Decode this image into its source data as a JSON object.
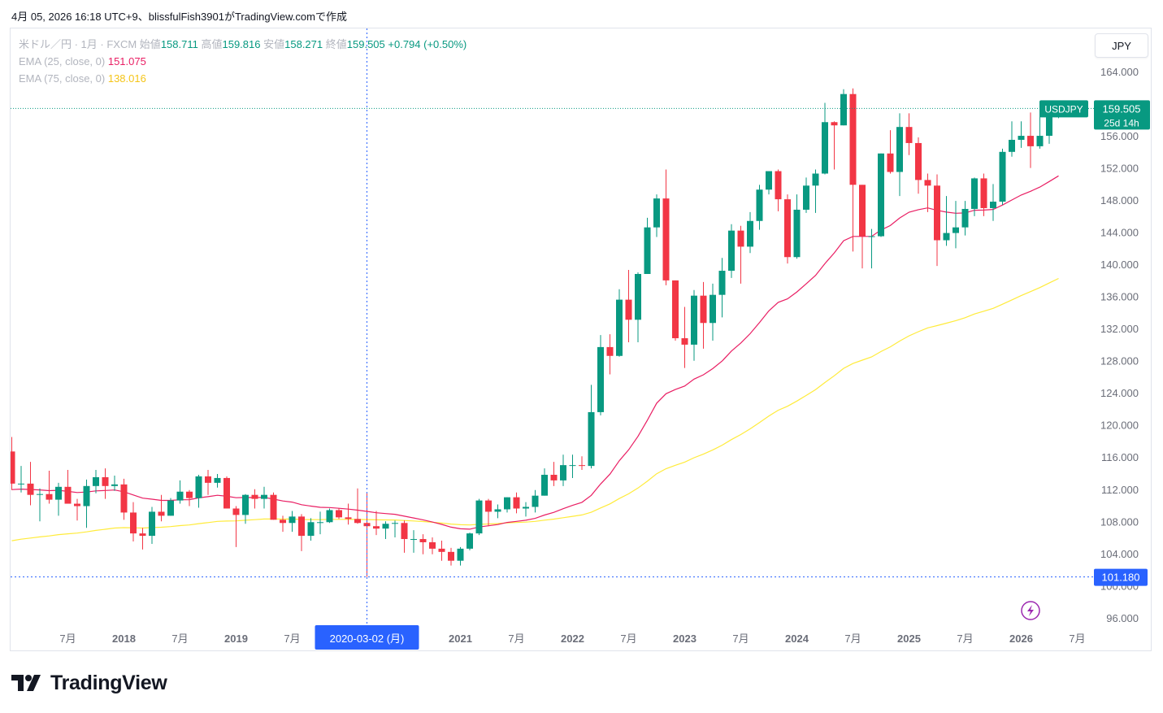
{
  "caption": "4月 05, 2026 16:18 UTC+9、blissfulFish3901がTradingView.comで作成",
  "legend": {
    "symbol_desc": "米ドル／円 · 1月 · FXCM",
    "open_label": "始値",
    "open_value": "158.711",
    "high_label": "高値",
    "high_value": "159.816",
    "low_label": "安値",
    "low_value": "158.271",
    "close_label": "終値",
    "close_value": "159.505",
    "change": "+0.794 (+0.50%)",
    "ema25_label": "EMA (25, close, 0)",
    "ema25_value": "151.075",
    "ema75_label": "EMA (75, close, 0)",
    "ema75_value": "138.016"
  },
  "currency_button": "JPY",
  "price_tag": {
    "symbol": "USDJPY",
    "price": "159.505",
    "countdown": "25d 14h"
  },
  "crosshair_price": "101.180",
  "crosshair_time": "2020-03-02 (月)",
  "logo_text": "TradingView",
  "colors": {
    "up": "#089981",
    "down": "#f23645",
    "ema25": "#e91e63",
    "ema75": "#ffeb3b",
    "crosshair": "#2962ff",
    "text": "#131722",
    "axis_text": "#6a6d78"
  },
  "chart_data": {
    "type": "candlestick",
    "symbol": "USDJPY",
    "interval": "1M",
    "ylim": [
      94,
      166
    ],
    "y_ticks": [
      "164.000",
      "160.000",
      "156.000",
      "152.000",
      "148.000",
      "144.000",
      "140.000",
      "136.000",
      "132.000",
      "128.000",
      "124.000",
      "120.000",
      "116.000",
      "112.000",
      "108.000",
      "104.000",
      "100.000",
      "96.000"
    ],
    "x_ticks": [
      {
        "label": "7月",
        "date": "2017-07"
      },
      {
        "label": "2018",
        "date": "2018-01"
      },
      {
        "label": "7月",
        "date": "2018-07"
      },
      {
        "label": "2019",
        "date": "2019-01"
      },
      {
        "label": "7月",
        "date": "2019-07"
      },
      {
        "label": "2021",
        "date": "2021-01"
      },
      {
        "label": "7月",
        "date": "2021-07"
      },
      {
        "label": "2022",
        "date": "2022-01"
      },
      {
        "label": "7月",
        "date": "2022-07"
      },
      {
        "label": "2023",
        "date": "2023-01"
      },
      {
        "label": "7月",
        "date": "2023-07"
      },
      {
        "label": "2024",
        "date": "2024-01"
      },
      {
        "label": "7月",
        "date": "2024-07"
      },
      {
        "label": "2025",
        "date": "2025-01"
      },
      {
        "label": "7月",
        "date": "2025-07"
      },
      {
        "label": "2026",
        "date": "2026-01"
      },
      {
        "label": "7月",
        "date": "2026-07"
      }
    ],
    "start": "2017-01",
    "ohlc": [
      [
        116.8,
        118.6,
        112.0,
        112.8
      ],
      [
        112.8,
        115.0,
        111.7,
        112.8
      ],
      [
        112.8,
        115.5,
        110.1,
        111.4
      ],
      [
        111.4,
        112.2,
        108.1,
        111.5
      ],
      [
        111.5,
        114.4,
        110.3,
        110.8
      ],
      [
        110.8,
        112.9,
        108.8,
        112.4
      ],
      [
        112.4,
        114.5,
        110.6,
        110.3
      ],
      [
        110.3,
        110.9,
        108.2,
        110.0
      ],
      [
        110.0,
        113.3,
        107.3,
        112.5
      ],
      [
        112.5,
        114.5,
        111.6,
        113.6
      ],
      [
        113.6,
        114.7,
        110.9,
        112.5
      ],
      [
        112.5,
        113.8,
        111.9,
        112.7
      ],
      [
        112.7,
        113.4,
        108.3,
        109.2
      ],
      [
        109.2,
        110.5,
        105.6,
        106.6
      ],
      [
        106.6,
        107.3,
        104.6,
        106.3
      ],
      [
        106.3,
        109.9,
        105.3,
        109.3
      ],
      [
        109.3,
        111.4,
        108.1,
        108.8
      ],
      [
        108.8,
        111.0,
        108.8,
        110.7
      ],
      [
        110.7,
        113.2,
        110.3,
        111.8
      ],
      [
        111.8,
        112.0,
        110.0,
        111.0
      ],
      [
        111.0,
        113.9,
        109.8,
        113.7
      ],
      [
        113.7,
        114.5,
        111.4,
        112.9
      ],
      [
        112.9,
        114.0,
        112.3,
        113.5
      ],
      [
        113.5,
        113.7,
        110.0,
        109.7
      ],
      [
        109.7,
        110.0,
        104.9,
        108.9
      ],
      [
        108.9,
        111.5,
        107.8,
        111.4
      ],
      [
        111.4,
        112.1,
        109.7,
        110.9
      ],
      [
        110.9,
        112.4,
        109.7,
        111.4
      ],
      [
        111.4,
        111.7,
        108.3,
        108.3
      ],
      [
        108.3,
        108.8,
        106.8,
        107.9
      ],
      [
        107.9,
        109.4,
        106.8,
        108.7
      ],
      [
        108.7,
        109.0,
        104.4,
        106.3
      ],
      [
        106.3,
        108.5,
        105.7,
        108.0
      ],
      [
        108.0,
        109.3,
        106.5,
        108.0
      ],
      [
        108.0,
        109.7,
        107.9,
        109.5
      ],
      [
        109.5,
        109.7,
        108.4,
        108.6
      ],
      [
        108.6,
        110.3,
        107.7,
        108.4
      ],
      [
        108.4,
        112.2,
        107.8,
        107.9
      ],
      [
        107.9,
        111.7,
        101.2,
        107.5
      ],
      [
        107.5,
        109.4,
        106.4,
        107.2
      ],
      [
        107.2,
        108.1,
        105.9,
        107.8
      ],
      [
        107.8,
        108.2,
        106.1,
        107.9
      ],
      [
        107.9,
        108.2,
        104.2,
        105.9
      ],
      [
        105.9,
        107.0,
        104.2,
        105.9
      ],
      [
        105.9,
        106.5,
        104.0,
        105.5
      ],
      [
        105.5,
        106.1,
        104.0,
        104.7
      ],
      [
        104.7,
        105.7,
        103.2,
        104.3
      ],
      [
        104.3,
        104.8,
        102.6,
        103.2
      ],
      [
        103.2,
        104.9,
        102.6,
        104.7
      ],
      [
        104.7,
        106.7,
        104.5,
        106.6
      ],
      [
        106.6,
        110.9,
        106.4,
        110.7
      ],
      [
        110.7,
        110.9,
        107.5,
        109.3
      ],
      [
        109.3,
        110.2,
        108.5,
        109.6
      ],
      [
        109.6,
        111.1,
        109.2,
        111.1
      ],
      [
        111.1,
        111.7,
        109.1,
        109.7
      ],
      [
        109.7,
        110.5,
        108.7,
        109.9
      ],
      [
        109.9,
        112.0,
        109.2,
        111.3
      ],
      [
        111.3,
        114.7,
        111.3,
        113.9
      ],
      [
        113.9,
        115.5,
        112.5,
        113.2
      ],
      [
        113.2,
        116.4,
        112.5,
        115.1
      ],
      [
        115.1,
        116.4,
        113.5,
        115.1
      ],
      [
        115.1,
        116.2,
        114.5,
        115.0
      ],
      [
        115.0,
        125.1,
        114.7,
        121.7
      ],
      [
        121.7,
        131.3,
        121.3,
        129.8
      ],
      [
        129.8,
        131.4,
        126.4,
        128.7
      ],
      [
        128.7,
        137.0,
        128.6,
        135.7
      ],
      [
        135.7,
        139.4,
        130.4,
        133.2
      ],
      [
        133.2,
        139.1,
        130.4,
        138.9
      ],
      [
        138.9,
        145.9,
        138.9,
        144.7
      ],
      [
        144.7,
        148.8,
        143.5,
        148.3
      ],
      [
        148.3,
        151.9,
        137.5,
        138.1
      ],
      [
        138.1,
        138.1,
        130.6,
        130.9
      ],
      [
        130.9,
        134.8,
        127.2,
        130.1
      ],
      [
        130.1,
        136.9,
        128.1,
        136.2
      ],
      [
        136.2,
        137.9,
        129.6,
        132.8
      ],
      [
        132.8,
        137.7,
        130.6,
        136.3
      ],
      [
        136.3,
        140.9,
        133.5,
        139.3
      ],
      [
        139.3,
        145.1,
        138.4,
        144.3
      ],
      [
        144.3,
        144.9,
        137.7,
        142.3
      ],
      [
        142.3,
        146.6,
        141.5,
        145.5
      ],
      [
        145.5,
        150.0,
        144.4,
        149.4
      ],
      [
        149.4,
        151.7,
        148.8,
        151.7
      ],
      [
        151.7,
        151.9,
        146.7,
        148.2
      ],
      [
        148.2,
        148.8,
        140.2,
        141.0
      ],
      [
        141.0,
        148.8,
        140.8,
        146.9
      ],
      [
        146.9,
        150.9,
        146.5,
        149.9
      ],
      [
        149.9,
        151.9,
        146.5,
        151.4
      ],
      [
        151.4,
        160.2,
        151.3,
        157.8
      ],
      [
        157.8,
        157.9,
        151.9,
        157.4
      ],
      [
        157.4,
        161.9,
        157.4,
        161.3
      ],
      [
        161.3,
        162.0,
        141.7,
        150.0
      ],
      [
        150.0,
        150.0,
        139.6,
        143.6
      ],
      [
        143.6,
        144.5,
        139.6,
        143.6
      ],
      [
        143.6,
        153.9,
        143.5,
        153.9
      ],
      [
        153.9,
        156.8,
        151.4,
        151.6
      ],
      [
        151.6,
        158.9,
        148.6,
        157.2
      ],
      [
        157.2,
        158.9,
        153.7,
        155.2
      ],
      [
        155.2,
        155.9,
        148.9,
        150.6
      ],
      [
        150.6,
        151.4,
        146.6,
        149.9
      ],
      [
        149.9,
        151.3,
        139.9,
        143.1
      ],
      [
        143.1,
        148.6,
        142.4,
        144.0
      ],
      [
        144.0,
        148.0,
        142.1,
        144.7
      ],
      [
        144.7,
        148.0,
        143.7,
        147.0
      ],
      [
        147.0,
        150.9,
        146.1,
        150.8
      ],
      [
        150.8,
        151.4,
        146.1,
        147.1
      ],
      [
        147.1,
        150.1,
        145.5,
        147.9
      ],
      [
        147.9,
        154.5,
        147.5,
        154.1
      ],
      [
        154.1,
        157.9,
        153.5,
        155.6
      ],
      [
        155.6,
        157.9,
        154.6,
        156.1
      ],
      [
        156.1,
        159.0,
        152.1,
        154.8
      ],
      [
        154.8,
        160.0,
        154.5,
        156.1
      ],
      [
        156.1,
        159.8,
        155.1,
        158.7
      ],
      [
        158.7,
        159.8,
        158.3,
        159.5
      ]
    ],
    "ema25_last": 151.075,
    "ema75_last": 138.016
  }
}
